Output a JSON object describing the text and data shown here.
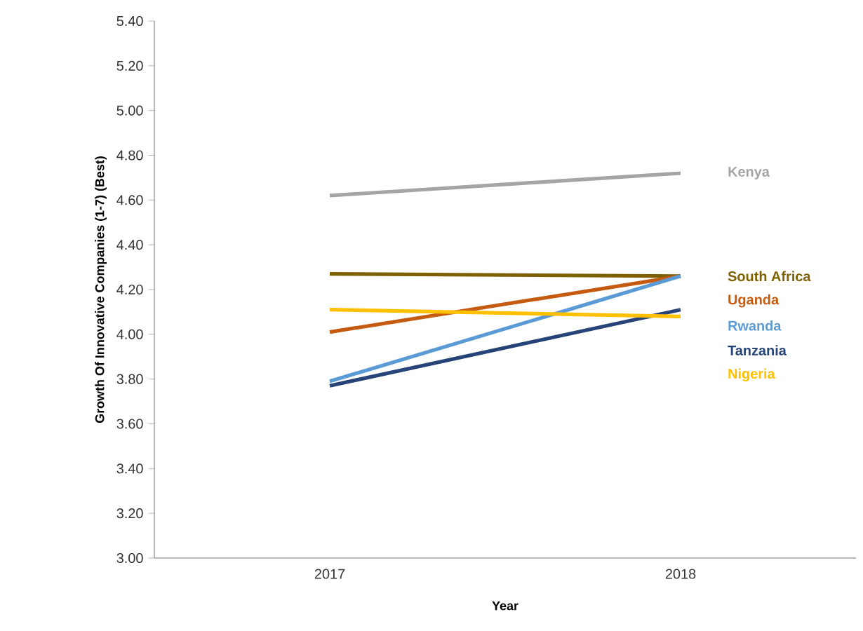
{
  "chart_data": {
    "type": "line",
    "xlabel": "Year",
    "ylabel": "Growth Of Innovative Companies (1-7) (Best)",
    "categories": [
      "2017",
      "2018"
    ],
    "ylim": [
      3.0,
      5.4
    ],
    "yticks": [
      {
        "value": 3.0,
        "label": "3.00"
      },
      {
        "value": 3.2,
        "label": "3.20"
      },
      {
        "value": 3.4,
        "label": "3.40"
      },
      {
        "value": 3.6,
        "label": "3.60"
      },
      {
        "value": 3.8,
        "label": "3.80"
      },
      {
        "value": 4.0,
        "label": "4.00"
      },
      {
        "value": 4.2,
        "label": "4.20"
      },
      {
        "value": 4.4,
        "label": "4.40"
      },
      {
        "value": 4.6,
        "label": "4.60"
      },
      {
        "value": 4.8,
        "label": "4.80"
      },
      {
        "value": 5.0,
        "label": "5.00"
      },
      {
        "value": 5.2,
        "label": "5.20"
      },
      {
        "value": 5.4,
        "label": "5.40"
      }
    ],
    "grid": false,
    "legend": false,
    "marker": "none",
    "line_style": "solid",
    "series": [
      {
        "name": "Kenya",
        "color": "#a5a5a5",
        "values": [
          4.62,
          4.72
        ]
      },
      {
        "name": "South Africa",
        "color": "#7f6000",
        "values": [
          4.27,
          4.26
        ]
      },
      {
        "name": "Uganda",
        "color": "#c55a11",
        "values": [
          4.01,
          4.26
        ]
      },
      {
        "name": "Rwanda",
        "color": "#5b9bd5",
        "values": [
          3.79,
          4.26
        ]
      },
      {
        "name": "Tanzania",
        "color": "#264478",
        "values": [
          3.77,
          4.11
        ]
      },
      {
        "name": "Nigeria",
        "color": "#ffc000",
        "values": [
          4.11,
          4.08
        ]
      }
    ]
  }
}
